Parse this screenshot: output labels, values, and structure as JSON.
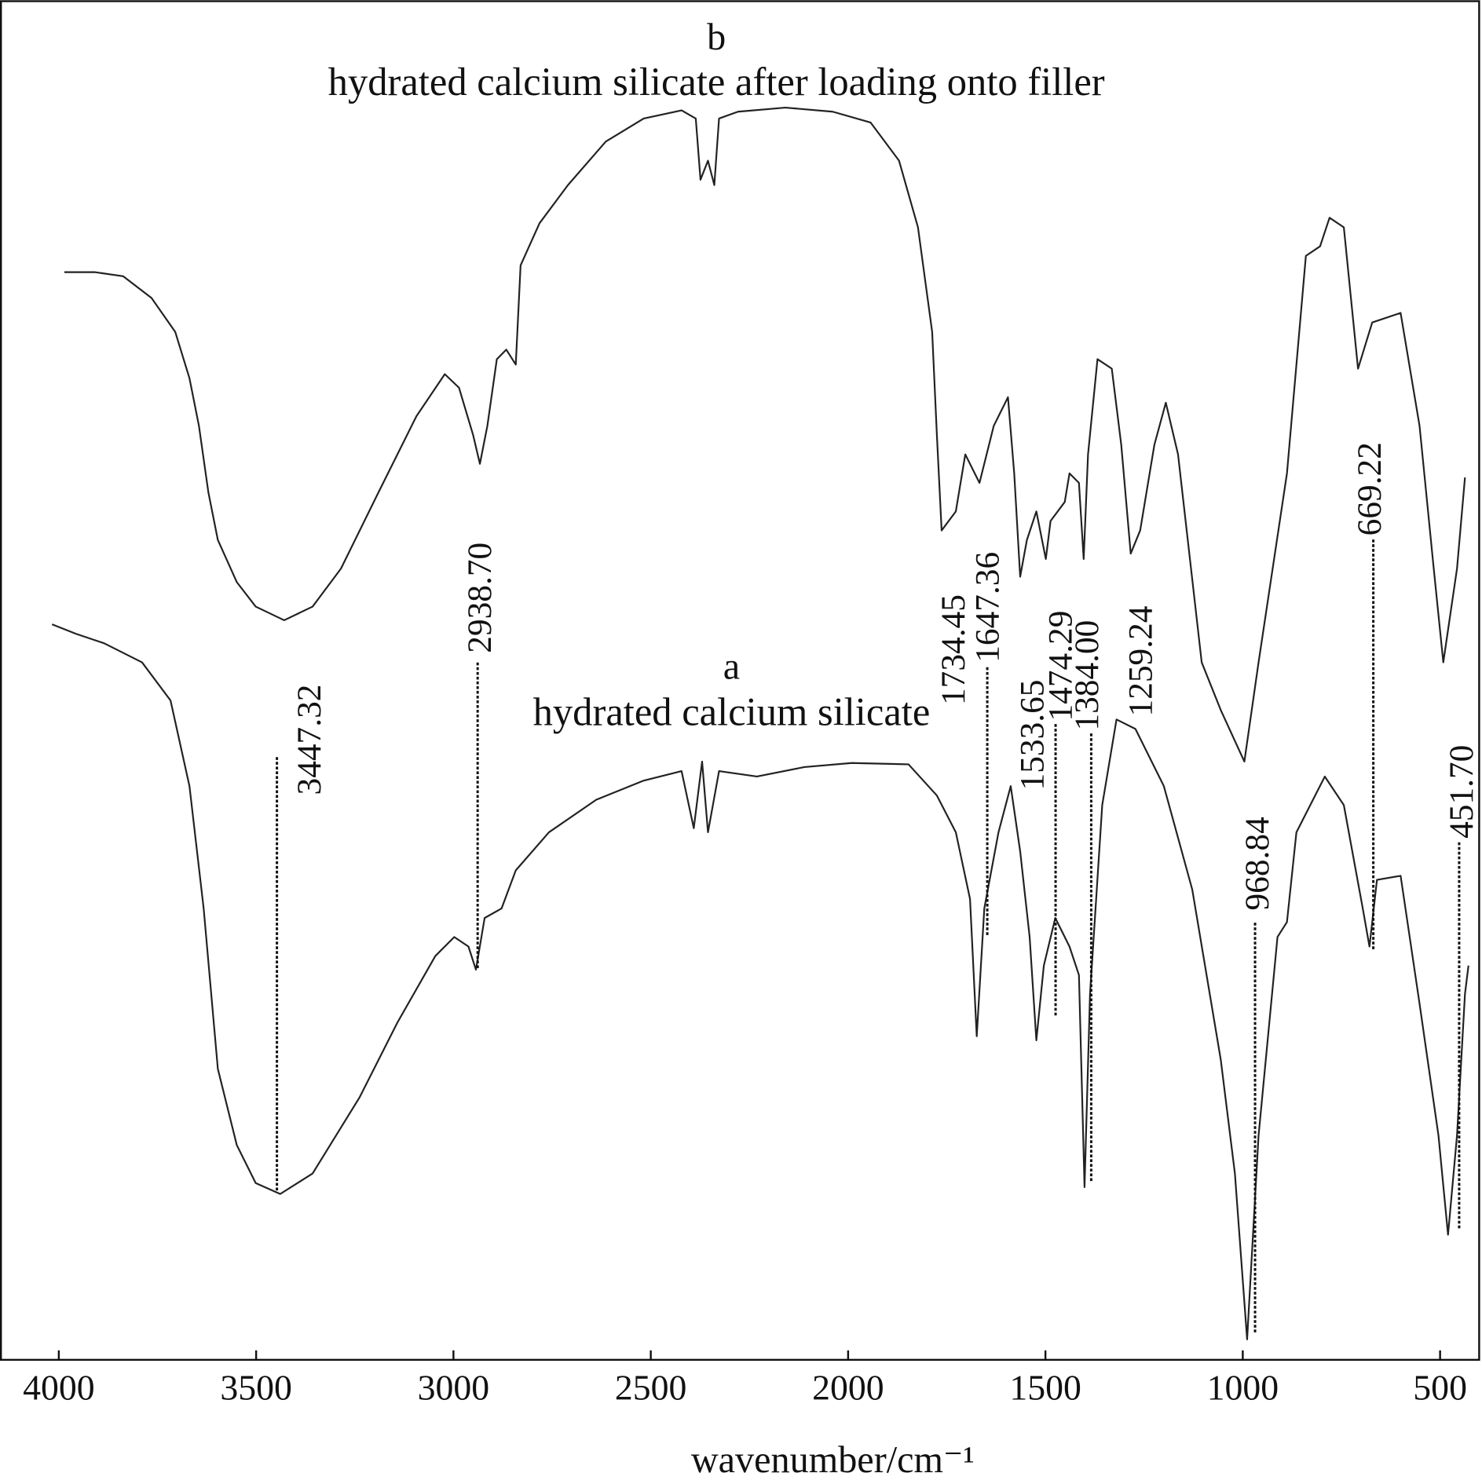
{
  "chart_data": {
    "type": "line",
    "x_label": "wavenumber/cm⁻¹",
    "xlim": [
      4149,
      401
    ],
    "ylim": [
      0,
      100
    ],
    "xticks": [
      4000,
      3500,
      3000,
      2500,
      2000,
      1500,
      1000,
      500
    ],
    "grid": false,
    "series": [
      {
        "name": "hydrated calcium silicate",
        "tag": "a",
        "color": "#222222",
        "x": [
          4017,
          3957,
          3885,
          3789,
          3717,
          3669,
          3633,
          3597,
          3549,
          3501,
          3439,
          3357,
          3238,
          3142,
          3046,
          2998,
          2962,
          2943,
          2921,
          2878,
          2842,
          2758,
          2638,
          2518,
          2422,
          2391,
          2370,
          2355,
          2327,
          2231,
          2111,
          1991,
          1847,
          1775,
          1727,
          1691,
          1674,
          1655,
          1619,
          1588,
          1564,
          1540,
          1523,
          1504,
          1475,
          1439,
          1415,
          1401,
          1387,
          1356,
          1320,
          1272,
          1200,
          1128,
          1056,
          1020,
          989,
          960,
          912,
          888,
          864,
          792,
          744,
          696,
          679,
          660,
          600,
          552,
          504,
          480,
          457,
          437,
          428
        ],
        "values": [
          54.1,
          53.4,
          52.7,
          51.3,
          48.5,
          42.2,
          33.2,
          21.4,
          15.8,
          13.0,
          12.2,
          13.7,
          19.3,
          24.8,
          29.7,
          31.1,
          30.4,
          28.7,
          32.5,
          33.2,
          36.0,
          38.8,
          41.2,
          42.6,
          43.3,
          39.1,
          44.0,
          38.8,
          43.3,
          42.9,
          43.6,
          43.9,
          43.8,
          41.5,
          38.8,
          33.9,
          23.8,
          33.2,
          38.8,
          42.2,
          37.4,
          31.1,
          23.5,
          29.0,
          32.5,
          30.4,
          28.3,
          12.7,
          26.9,
          40.8,
          47.1,
          46.4,
          42.2,
          34.6,
          22.1,
          13.7,
          1.5,
          16.5,
          31.1,
          32.2,
          38.8,
          42.9,
          40.8,
          33.2,
          30.4,
          35.3,
          35.6,
          26.2,
          16.5,
          9.2,
          16.5,
          26.9,
          29.0
        ]
      },
      {
        "name": "hydrated calcium silicate after loading onto filler",
        "tag": "b",
        "color": "#222222",
        "x": [
          3986,
          3909,
          3837,
          3765,
          3705,
          3669,
          3645,
          3621,
          3597,
          3549,
          3501,
          3429,
          3357,
          3285,
          3190,
          3094,
          3022,
          2986,
          2950,
          2933,
          2914,
          2890,
          2866,
          2842,
          2830,
          2782,
          2710,
          2614,
          2518,
          2422,
          2386,
          2374,
          2355,
          2339,
          2327,
          2279,
          2159,
          2039,
          1943,
          1871,
          1823,
          1787,
          1775,
          1763,
          1727,
          1703,
          1667,
          1631,
          1595,
          1579,
          1564,
          1547,
          1523,
          1499,
          1487,
          1451,
          1439,
          1415,
          1403,
          1392,
          1368,
          1332,
          1308,
          1284,
          1260,
          1224,
          1195,
          1164,
          1104,
          1056,
          996,
          960,
          888,
          840,
          804,
          780,
          744,
          708,
          672,
          600,
          552,
          516,
          492,
          457,
          437
        ],
        "values": [
          80.0,
          80.0,
          79.7,
          78.1,
          75.6,
          72.2,
          68.7,
          63.8,
          60.3,
          57.2,
          55.4,
          54.4,
          55.4,
          58.2,
          63.8,
          69.4,
          72.5,
          71.5,
          68.0,
          65.9,
          68.7,
          73.6,
          74.3,
          73.2,
          80.5,
          83.6,
          86.4,
          89.6,
          91.3,
          91.9,
          91.3,
          86.8,
          88.2,
          86.4,
          91.3,
          91.8,
          92.1,
          91.8,
          91.0,
          88.2,
          83.3,
          75.6,
          68.0,
          61.0,
          62.4,
          66.6,
          64.5,
          68.7,
          70.8,
          65.2,
          57.6,
          60.3,
          62.4,
          58.9,
          61.7,
          63.1,
          65.2,
          64.5,
          58.9,
          66.6,
          73.6,
          72.9,
          67.3,
          59.3,
          61.0,
          67.3,
          70.4,
          66.6,
          51.3,
          47.8,
          44.0,
          51.3,
          65.2,
          81.2,
          81.9,
          84.0,
          83.3,
          72.9,
          76.3,
          77.0,
          68.7,
          58.2,
          51.3,
          58.2,
          64.9
        ]
      }
    ],
    "peaks": [
      3447.32,
      {
        "value": 2938.7,
        "label": "2938.70"
      },
      1734.45,
      1647.36,
      1533.65,
      1474.29,
      {
        "value": 1384,
        "label": "1384.00"
      },
      1259.24,
      968.84,
      669.22,
      {
        "value": 451.7,
        "label": "451.70"
      }
    ]
  }
}
